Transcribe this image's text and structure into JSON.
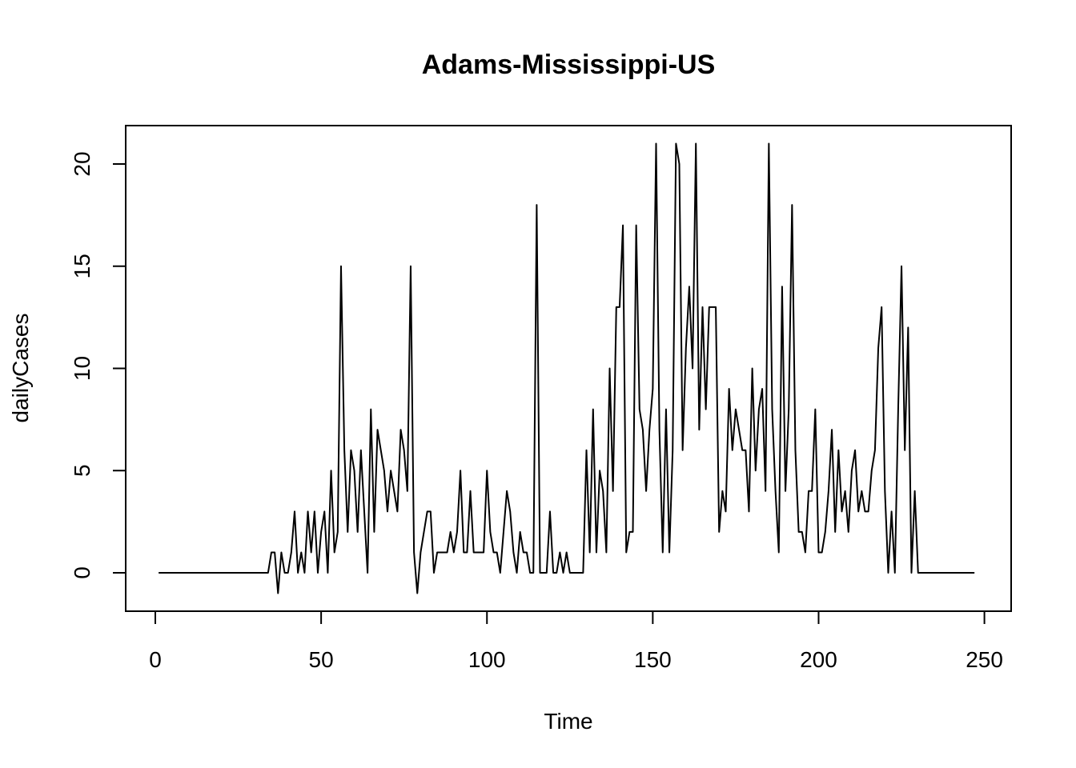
{
  "chart_data": {
    "type": "line",
    "title": "Adams-Mississippi-US",
    "xlabel": "Time",
    "ylabel": "dailyCases",
    "xlim": [
      0,
      250
    ],
    "ylim": [
      0,
      20
    ],
    "x_ticks": [
      "0",
      "50",
      "100",
      "150",
      "200",
      "250"
    ],
    "y_ticks": [
      "0",
      "5",
      "10",
      "15",
      "20"
    ],
    "grid": false,
    "series": [
      {
        "x_start": 1,
        "values": [
          0,
          0,
          0,
          0,
          0,
          0,
          0,
          0,
          0,
          0,
          0,
          0,
          0,
          0,
          0,
          0,
          0,
          0,
          0,
          0,
          0,
          0,
          0,
          0,
          0,
          0,
          0,
          0,
          0,
          0,
          0,
          0,
          0,
          0,
          1,
          1,
          -1,
          1,
          0,
          0,
          1,
          3,
          0,
          1,
          0,
          3,
          1,
          3,
          0,
          2,
          3,
          0,
          5,
          1,
          2,
          15,
          6,
          2,
          6,
          5,
          2,
          6,
          3,
          0,
          8,
          2,
          7,
          6,
          5,
          3,
          5,
          4,
          3,
          7,
          6,
          4,
          15,
          1,
          -1,
          1,
          2,
          3,
          3,
          0,
          1,
          1,
          1,
          1,
          2,
          1,
          2,
          5,
          1,
          1,
          4,
          1,
          1,
          1,
          1,
          5,
          2,
          1,
          1,
          0,
          2,
          4,
          3,
          1,
          0,
          2,
          1,
          1,
          0,
          0,
          18,
          0,
          0,
          0,
          3,
          0,
          0,
          1,
          0,
          1,
          0,
          0,
          0,
          0,
          0,
          6,
          1,
          8,
          1,
          5,
          4,
          1,
          10,
          4,
          13,
          13,
          17,
          1,
          2,
          2,
          17,
          8,
          7,
          4,
          7,
          9,
          21,
          7,
          1,
          8,
          1,
          6,
          21,
          20,
          6,
          11,
          14,
          10,
          21,
          7,
          13,
          8,
          13,
          13,
          13,
          2,
          4,
          3,
          9,
          6,
          8,
          7,
          6,
          6,
          3,
          10,
          5,
          8,
          9,
          4,
          21,
          8,
          4,
          1,
          14,
          4,
          8,
          18,
          6,
          2,
          2,
          1,
          4,
          4,
          8,
          1,
          1,
          2,
          4,
          7,
          2,
          6,
          3,
          4,
          2,
          5,
          6,
          3,
          4,
          3,
          3,
          5,
          6,
          11,
          13,
          4,
          0,
          3,
          0,
          8,
          15,
          6,
          12,
          0,
          4,
          0,
          0,
          0,
          0,
          0,
          0,
          0,
          0,
          0,
          0,
          0,
          0,
          0,
          0,
          0,
          0,
          0,
          0
        ]
      }
    ]
  },
  "colors": {
    "line": "#000000",
    "axis": "#000000",
    "background": "#ffffff"
  }
}
